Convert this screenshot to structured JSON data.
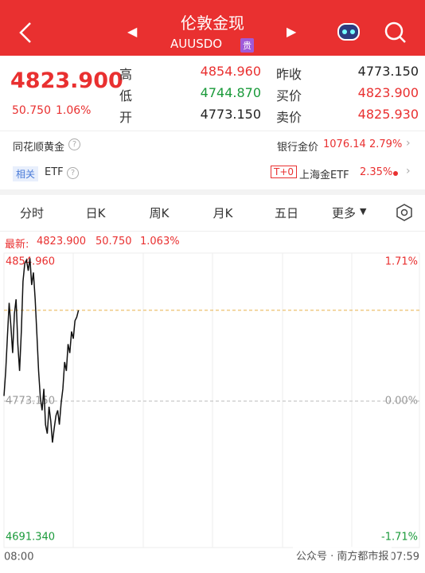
{
  "header": {
    "title": "伦敦金现",
    "code": "AUUSDO",
    "badge": "贵"
  },
  "quote": {
    "price": "4823.900",
    "change": "50.750",
    "change_pct": "1.06%"
  },
  "stats": [
    {
      "label": "高",
      "value": "4854.960"
    },
    {
      "label": "低",
      "value": "4744.870"
    },
    {
      "label": "开",
      "value": "4773.150"
    },
    {
      "label": "昨收",
      "value": "4773.150"
    },
    {
      "label": "买价",
      "value": "4823.900"
    },
    {
      "label": "卖价",
      "value": "4825.930"
    }
  ],
  "bank_row": {
    "name": "同花顺黄金",
    "label": "银行金价",
    "price": "1076.14",
    "pct": "2.79%"
  },
  "etf_row": {
    "tag": "相关",
    "name": "ETF",
    "badge": "T+0",
    "fund": "上海金ETF",
    "pct": "2.35%"
  },
  "tabs": [
    "分时",
    "日K",
    "周K",
    "月K",
    "五日",
    "更多"
  ],
  "info": {
    "label": "最新:",
    "price": "4823.900",
    "change": "50.750",
    "pct": "1.063%"
  },
  "chart_data": {
    "type": "line",
    "x": [
      0,
      6,
      12,
      18,
      24,
      30,
      36,
      42,
      48,
      54,
      60,
      66,
      72,
      78,
      84,
      90,
      96,
      102,
      108,
      114,
      120,
      126,
      132,
      138,
      144,
      150,
      156,
      162,
      168,
      174,
      180,
      186,
      192,
      198,
      204,
      210,
      216,
      222,
      228,
      234,
      240,
      246,
      252,
      258
    ],
    "series": [
      {
        "color": "#111111",
        "values": [
          4776,
          4790,
          4810,
          4828,
          4815,
          4800,
          4822,
          4830,
          4805,
          4790,
          4812,
          4840,
          4850,
          4852,
          4846,
          4853,
          4838,
          4845,
          4830,
          4810,
          4790,
          4775,
          4768,
          4780,
          4760,
          4755,
          4770,
          4762,
          4750,
          4758,
          4765,
          4768,
          4760,
          4772,
          4780,
          4795,
          4790,
          4805,
          4800,
          4812,
          4808,
          4818,
          4820,
          4823.9
        ]
      }
    ],
    "xlim": [
      0,
      1439
    ],
    "xticks": [
      {
        "value": 0,
        "label": "08:00"
      },
      {
        "value": 1439,
        "label": "07:59"
      }
    ],
    "ylim": [
      4691.34,
      4854.96
    ],
    "yticks": [
      {
        "value": 4854.96,
        "label": "4854.960"
      },
      {
        "value": 4773.15,
        "label": "4773.150"
      },
      {
        "value": 4691.34,
        "label": "4691.340"
      }
    ],
    "y2lim": [
      -1.71,
      1.71
    ],
    "y2ticks": [
      {
        "value": 1.71,
        "label": "1.71%"
      },
      {
        "value": 0,
        "label": "0.00%"
      },
      {
        "value": -1.71,
        "label": "-1.71%"
      }
    ]
  },
  "watermark": "公众号 · 南方都市报"
}
